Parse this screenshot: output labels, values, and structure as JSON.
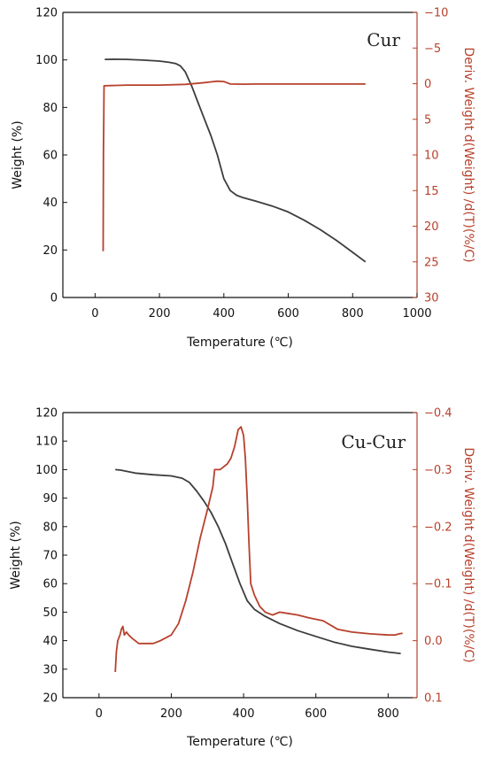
{
  "colors": {
    "weight": "#3d3d3d",
    "deriv": "#b7412c",
    "axis": "#111111",
    "right_axis": "#b7412c"
  },
  "chart_data": [
    {
      "type": "line",
      "title": "Cur",
      "xlabel": "Temperature (℃)",
      "ylabel": "Weight (%)",
      "y2label": "Deriv. Weight d(Weight) /d(T)(%/C)",
      "xlim": [
        -100,
        1000
      ],
      "ylim": [
        0,
        120
      ],
      "y2lim": [
        30,
        -10
      ],
      "xticks": [
        "0",
        "200",
        "400",
        "600",
        "800",
        "1000"
      ],
      "yticks": [
        "0",
        "20",
        "40",
        "60",
        "80",
        "100",
        "120"
      ],
      "y2ticks": [
        "30",
        "25",
        "20",
        "15",
        "10",
        "5",
        "0",
        "−5",
        "−10"
      ],
      "series": [
        {
          "axis": "left",
          "color": "#3d3d3d",
          "points": [
            [
              30,
              100.2
            ],
            [
              60,
              100.3
            ],
            [
              100,
              100.2
            ],
            [
              150,
              99.9
            ],
            [
              200,
              99.5
            ],
            [
              230,
              99
            ],
            [
              250,
              98.5
            ],
            [
              265,
              97.5
            ],
            [
              280,
              95
            ],
            [
              300,
              89
            ],
            [
              320,
              82
            ],
            [
              340,
              75
            ],
            [
              360,
              68
            ],
            [
              380,
              60
            ],
            [
              400,
              50
            ],
            [
              420,
              45
            ],
            [
              440,
              43
            ],
            [
              460,
              42
            ],
            [
              500,
              40.5
            ],
            [
              550,
              38.5
            ],
            [
              600,
              36
            ],
            [
              650,
              32.5
            ],
            [
              700,
              28.5
            ],
            [
              750,
              24
            ],
            [
              800,
              19
            ],
            [
              840,
              15
            ]
          ]
        },
        {
          "axis": "right",
          "color": "#b7412c",
          "points": [
            [
              25,
              23.5
            ],
            [
              26,
              10
            ],
            [
              27,
              5
            ],
            [
              28,
              0.3
            ],
            [
              100,
              0.2
            ],
            [
              200,
              0.2
            ],
            [
              280,
              0.1
            ],
            [
              330,
              -0.1
            ],
            [
              360,
              -0.25
            ],
            [
              380,
              -0.35
            ],
            [
              400,
              -0.3
            ],
            [
              420,
              0.05
            ],
            [
              460,
              0.08
            ],
            [
              500,
              0.05
            ],
            [
              600,
              0.05
            ],
            [
              700,
              0.05
            ],
            [
              840,
              0.05
            ]
          ]
        }
      ]
    },
    {
      "type": "line",
      "title": "Cu-Cur",
      "xlabel": "Temperature (℃)",
      "ylabel": "Weight (%)",
      "y2label": "Deriv. Weight d(Weight) /d(T)(%/C)",
      "xlim": [
        -100,
        880
      ],
      "ylim": [
        20,
        120
      ],
      "y2lim": [
        0.1,
        -0.4
      ],
      "xticks": [
        "0",
        "200",
        "400",
        "600",
        "800"
      ],
      "yticks": [
        "20",
        "30",
        "40",
        "50",
        "60",
        "70",
        "80",
        "90",
        "100",
        "110",
        "120"
      ],
      "y2ticks": [
        "0.1",
        "0.0",
        "−0.1",
        "−0.2",
        "−0.3",
        "−0.4"
      ],
      "series": [
        {
          "axis": "left",
          "color": "#3d3d3d",
          "points": [
            [
              45,
              100
            ],
            [
              60,
              99.8
            ],
            [
              100,
              98.8
            ],
            [
              150,
              98.2
            ],
            [
              200,
              97.8
            ],
            [
              230,
              97
            ],
            [
              250,
              95.5
            ],
            [
              270,
              92.5
            ],
            [
              290,
              89
            ],
            [
              310,
              85
            ],
            [
              330,
              80
            ],
            [
              350,
              74
            ],
            [
              370,
              67
            ],
            [
              390,
              60
            ],
            [
              410,
              54
            ],
            [
              430,
              51
            ],
            [
              460,
              48.5
            ],
            [
              500,
              46
            ],
            [
              550,
              43.5
            ],
            [
              600,
              41.5
            ],
            [
              650,
              39.5
            ],
            [
              700,
              38
            ],
            [
              750,
              37
            ],
            [
              800,
              36
            ],
            [
              835,
              35.5
            ]
          ]
        },
        {
          "axis": "right",
          "color": "#b7412c",
          "points": [
            [
              45,
              0.055
            ],
            [
              48,
              0.02
            ],
            [
              52,
              0.0
            ],
            [
              58,
              -0.01
            ],
            [
              62,
              -0.02
            ],
            [
              66,
              -0.025
            ],
            [
              70,
              -0.01
            ],
            [
              76,
              -0.015
            ],
            [
              82,
              -0.01
            ],
            [
              90,
              -0.005
            ],
            [
              110,
              0.005
            ],
            [
              150,
              0.005
            ],
            [
              170,
              0.0
            ],
            [
              200,
              -0.01
            ],
            [
              220,
              -0.03
            ],
            [
              240,
              -0.07
            ],
            [
              260,
              -0.12
            ],
            [
              280,
              -0.18
            ],
            [
              300,
              -0.23
            ],
            [
              315,
              -0.27
            ],
            [
              320,
              -0.3
            ],
            [
              335,
              -0.3
            ],
            [
              345,
              -0.305
            ],
            [
              355,
              -0.31
            ],
            [
              365,
              -0.32
            ],
            [
              375,
              -0.34
            ],
            [
              385,
              -0.37
            ],
            [
              393,
              -0.375
            ],
            [
              400,
              -0.36
            ],
            [
              405,
              -0.32
            ],
            [
              410,
              -0.25
            ],
            [
              415,
              -0.17
            ],
            [
              420,
              -0.1
            ],
            [
              430,
              -0.08
            ],
            [
              445,
              -0.06
            ],
            [
              460,
              -0.05
            ],
            [
              480,
              -0.045
            ],
            [
              500,
              -0.05
            ],
            [
              520,
              -0.048
            ],
            [
              550,
              -0.045
            ],
            [
              580,
              -0.04
            ],
            [
              620,
              -0.035
            ],
            [
              660,
              -0.02
            ],
            [
              700,
              -0.015
            ],
            [
              750,
              -0.012
            ],
            [
              800,
              -0.01
            ],
            [
              820,
              -0.01
            ],
            [
              830,
              -0.012
            ],
            [
              840,
              -0.013
            ]
          ]
        }
      ]
    }
  ]
}
